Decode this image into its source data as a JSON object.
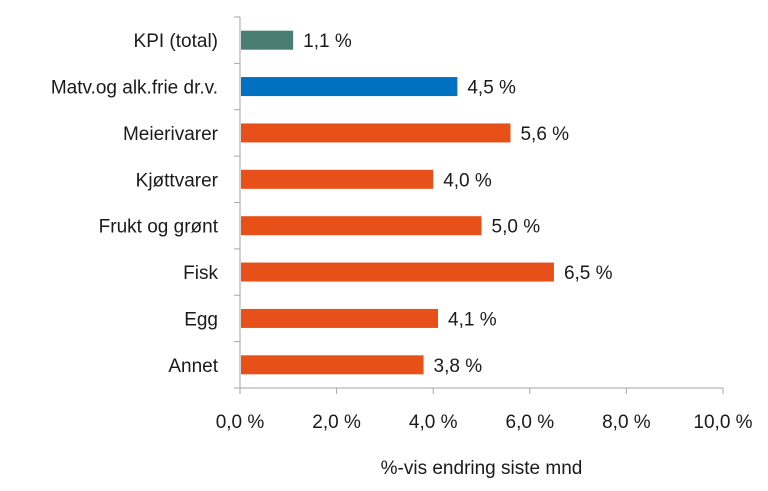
{
  "chart_data": {
    "type": "bar",
    "orientation": "horizontal",
    "categories": [
      "KPI (total)",
      "Matv.og alk.frie dr.v.",
      "Meierivarer",
      "Kjøttvarer",
      "Frukt og grønt",
      "Fisk",
      "Egg",
      "Annet"
    ],
    "values": [
      1.1,
      4.5,
      5.6,
      4.0,
      5.0,
      6.5,
      4.1,
      3.8
    ],
    "value_labels": [
      "1,1 %",
      "4,5 %",
      "5,6 %",
      "4,0 %",
      "5,0 %",
      "6,5 %",
      "4,1 %",
      "3,8 %"
    ],
    "bar_colors": [
      "#4a7d74",
      "#0070c0",
      "#e8501a",
      "#e8501a",
      "#e8501a",
      "#e8501a",
      "#e8501a",
      "#e8501a"
    ],
    "xlim": [
      0,
      10
    ],
    "xticks": [
      0,
      2,
      4,
      6,
      8,
      10
    ],
    "xtick_labels": [
      "0,0 %",
      "2,0 %",
      "4,0 %",
      "6,0 %",
      "8,0 %",
      "10,0 %"
    ],
    "xlabel": "%-vis endring siste mnd",
    "ylabel": "",
    "title": "",
    "grid": false,
    "legend": false
  }
}
